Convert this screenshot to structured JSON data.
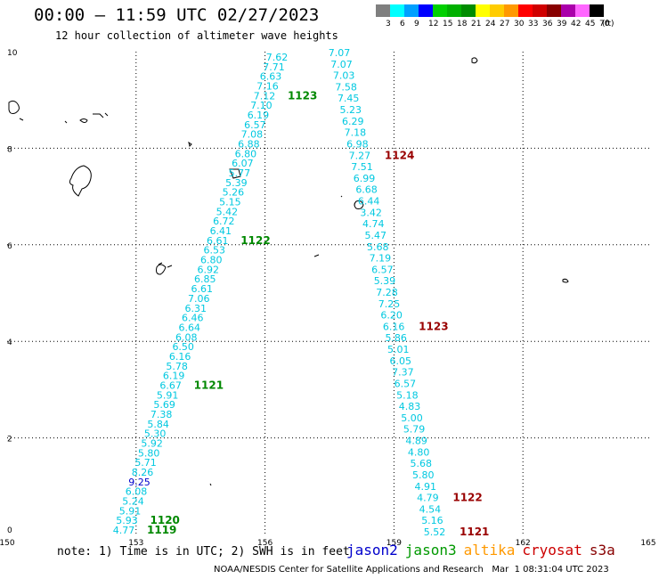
{
  "header": {
    "title": "00:00 – 11:59 UTC 02/27/2023",
    "subtitle": "12 hour collection of altimeter wave heights"
  },
  "color_scale": {
    "unit": "(ft)",
    "bins": [
      {
        "label": "3",
        "color": "#7f7f7f"
      },
      {
        "label": "6",
        "color": "#00ffff"
      },
      {
        "label": "9",
        "color": "#00a0ff"
      },
      {
        "label": "12",
        "color": "#0000ff"
      },
      {
        "label": "15",
        "color": "#00d000"
      },
      {
        "label": "18",
        "color": "#00b000"
      },
      {
        "label": "21",
        "color": "#008c00"
      },
      {
        "label": "24",
        "color": "#ffff00"
      },
      {
        "label": "27",
        "color": "#ffcc00"
      },
      {
        "label": "30",
        "color": "#ff9900"
      },
      {
        "label": "33",
        "color": "#ff0000"
      },
      {
        "label": "36",
        "color": "#d00000"
      },
      {
        "label": "39",
        "color": "#880000"
      },
      {
        "label": "42",
        "color": "#aa00aa"
      },
      {
        "label": "45",
        "color": "#ff66ff"
      },
      {
        "label": "70",
        "color": "#000000"
      }
    ]
  },
  "axes": {
    "x_ticks": [
      "150",
      "153",
      "156",
      "159",
      "162",
      "165"
    ],
    "y_ticks": [
      "0",
      "2",
      "4",
      "6",
      "8",
      "10"
    ]
  },
  "tracks": [
    {
      "satellite": "jason3",
      "values": [
        "7.62",
        "7.71",
        "6.63",
        "7.16",
        "7.12",
        "7.10",
        "6.19",
        "6.57",
        "7.08",
        "6.88",
        "6.80",
        "6.07",
        "5.77",
        "5.39",
        "5.26",
        "5.15",
        "5.42",
        "6.72",
        "6.41",
        "6.61",
        "6.53",
        "6.80",
        "6.92",
        "6.85",
        "6.61",
        "7.06",
        "6.31",
        "6.46",
        "6.64",
        "6.08",
        "6.50",
        "6.16",
        "5.78",
        "6.19",
        "6.67",
        "5.91",
        "5.69",
        "7.38",
        "5.84",
        "5.30",
        "5.92",
        "5.80",
        "5.71",
        "8.26",
        "9.25",
        "6.08",
        "5.24",
        "5.91",
        "5.93",
        "4.77"
      ],
      "time_labels": [
        {
          "label": "1123",
          "index": 4
        },
        {
          "label": "1122",
          "index": 19
        },
        {
          "label": "1121",
          "index": 34
        },
        {
          "label": "1120",
          "index": 48
        },
        {
          "label": "1119",
          "index": 49
        }
      ]
    },
    {
      "satellite": "cryosat",
      "values": [
        "7.07",
        "7.07",
        "7.03",
        "7.58",
        "7.45",
        "5.23",
        "6.29",
        "7.18",
        "6.98",
        "7.27",
        "7.51",
        "6.99",
        "6.68",
        "6.44",
        "3.42",
        "4.74",
        "5.47",
        "5.68",
        "7.19",
        "6.57",
        "5.39",
        "7.28",
        "7.25",
        "6.20",
        "6.16",
        "5.86",
        "5.01",
        "6.05",
        "7.37",
        "6.57",
        "5.18",
        "4.83",
        "5.00",
        "5.79",
        "4.89",
        "4.80",
        "5.68",
        "5.80",
        "4.91",
        "4.79",
        "4.54",
        "5.16",
        "5.52"
      ],
      "time_labels": [
        {
          "label": "1124",
          "index": 9
        },
        {
          "label": "1123",
          "index": 24
        },
        {
          "label": "1122",
          "index": 39
        },
        {
          "label": "1121",
          "index": 42
        }
      ]
    }
  ],
  "note": "note: 1) Time is in UTC; 2) SWH is in feet",
  "legend": [
    {
      "name": "jason2",
      "color": "#0000cc"
    },
    {
      "name": "jason3",
      "color": "#009900"
    },
    {
      "name": "altika",
      "color": "#ff9900"
    },
    {
      "name": "cryosat",
      "color": "#cc0000"
    },
    {
      "name": "s3a",
      "color": "#880000"
    }
  ],
  "footer": "NOAA/NESDIS Center for Satellite Applications and Research   Mar  1 08:31:04 UTC 2023"
}
